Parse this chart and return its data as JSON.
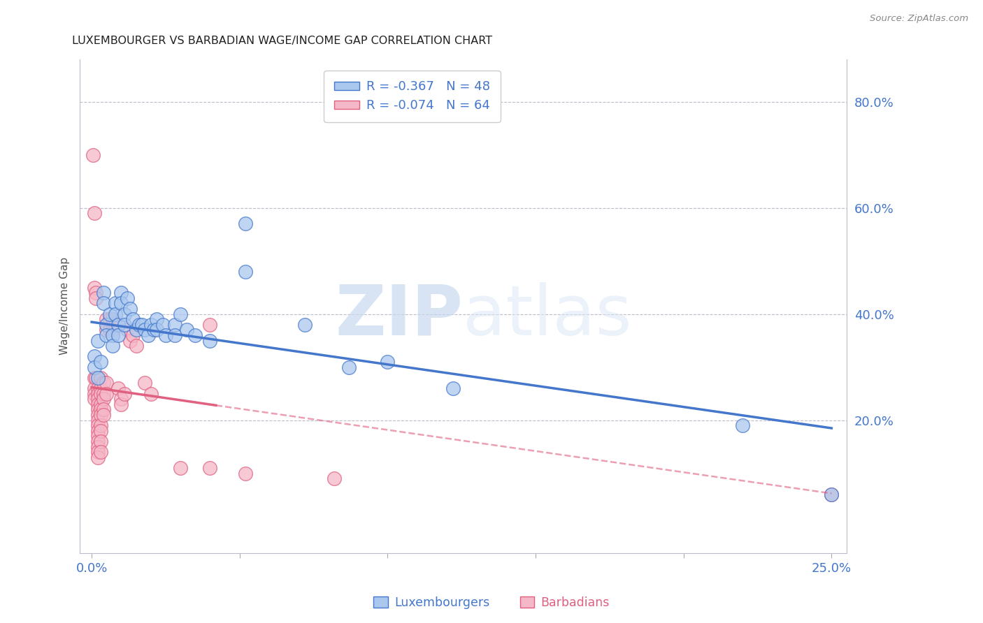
{
  "title": "LUXEMBOURGER VS BARBADIAN WAGE/INCOME GAP CORRELATION CHART",
  "source": "Source: ZipAtlas.com",
  "ylabel": "Wage/Income Gap",
  "right_yticks": [
    "80.0%",
    "60.0%",
    "40.0%",
    "20.0%"
  ],
  "right_ytick_vals": [
    0.8,
    0.6,
    0.4,
    0.2
  ],
  "legend_lux": "Luxembourgers",
  "legend_bar": "Barbadians",
  "lux_R": "R = -0.367",
  "lux_N": "N = 48",
  "bar_R": "R = -0.074",
  "bar_N": "N = 64",
  "lux_color": "#aac8ee",
  "bar_color": "#f5b8c8",
  "lux_line_color": "#4477cc",
  "bar_line_color": "#e06080",
  "watermark_zip": "ZIP",
  "watermark_atlas": "atlas",
  "xlim": [
    -0.004,
    0.255
  ],
  "ylim": [
    -0.05,
    0.88
  ],
  "lux_scatter": [
    [
      0.001,
      0.32
    ],
    [
      0.001,
      0.3
    ],
    [
      0.002,
      0.35
    ],
    [
      0.003,
      0.31
    ],
    [
      0.002,
      0.28
    ],
    [
      0.004,
      0.44
    ],
    [
      0.004,
      0.42
    ],
    [
      0.005,
      0.38
    ],
    [
      0.005,
      0.36
    ],
    [
      0.006,
      0.4
    ],
    [
      0.007,
      0.36
    ],
    [
      0.007,
      0.34
    ],
    [
      0.008,
      0.42
    ],
    [
      0.008,
      0.4
    ],
    [
      0.009,
      0.38
    ],
    [
      0.009,
      0.36
    ],
    [
      0.01,
      0.44
    ],
    [
      0.01,
      0.42
    ],
    [
      0.011,
      0.4
    ],
    [
      0.011,
      0.38
    ],
    [
      0.012,
      0.43
    ],
    [
      0.013,
      0.41
    ],
    [
      0.014,
      0.39
    ],
    [
      0.015,
      0.37
    ],
    [
      0.016,
      0.38
    ],
    [
      0.017,
      0.38
    ],
    [
      0.018,
      0.37
    ],
    [
      0.019,
      0.36
    ],
    [
      0.02,
      0.38
    ],
    [
      0.021,
      0.37
    ],
    [
      0.022,
      0.39
    ],
    [
      0.022,
      0.37
    ],
    [
      0.024,
      0.38
    ],
    [
      0.025,
      0.36
    ],
    [
      0.028,
      0.38
    ],
    [
      0.028,
      0.36
    ],
    [
      0.03,
      0.4
    ],
    [
      0.032,
      0.37
    ],
    [
      0.035,
      0.36
    ],
    [
      0.04,
      0.35
    ],
    [
      0.052,
      0.57
    ],
    [
      0.052,
      0.48
    ],
    [
      0.072,
      0.38
    ],
    [
      0.087,
      0.3
    ],
    [
      0.1,
      0.31
    ],
    [
      0.122,
      0.26
    ],
    [
      0.22,
      0.19
    ],
    [
      0.25,
      0.06
    ]
  ],
  "bar_scatter": [
    [
      0.0005,
      0.7
    ],
    [
      0.001,
      0.59
    ],
    [
      0.0008,
      0.45
    ],
    [
      0.001,
      0.28
    ],
    [
      0.001,
      0.26
    ],
    [
      0.001,
      0.25
    ],
    [
      0.001,
      0.24
    ],
    [
      0.0015,
      0.44
    ],
    [
      0.0015,
      0.43
    ],
    [
      0.0015,
      0.28
    ],
    [
      0.002,
      0.26
    ],
    [
      0.002,
      0.25
    ],
    [
      0.002,
      0.24
    ],
    [
      0.002,
      0.23
    ],
    [
      0.002,
      0.22
    ],
    [
      0.002,
      0.21
    ],
    [
      0.002,
      0.2
    ],
    [
      0.002,
      0.19
    ],
    [
      0.002,
      0.18
    ],
    [
      0.002,
      0.17
    ],
    [
      0.002,
      0.16
    ],
    [
      0.002,
      0.15
    ],
    [
      0.002,
      0.14
    ],
    [
      0.002,
      0.13
    ],
    [
      0.003,
      0.28
    ],
    [
      0.003,
      0.26
    ],
    [
      0.003,
      0.25
    ],
    [
      0.003,
      0.23
    ],
    [
      0.003,
      0.22
    ],
    [
      0.003,
      0.21
    ],
    [
      0.003,
      0.19
    ],
    [
      0.003,
      0.18
    ],
    [
      0.003,
      0.16
    ],
    [
      0.003,
      0.14
    ],
    [
      0.004,
      0.27
    ],
    [
      0.004,
      0.25
    ],
    [
      0.004,
      0.24
    ],
    [
      0.004,
      0.22
    ],
    [
      0.004,
      0.21
    ],
    [
      0.005,
      0.39
    ],
    [
      0.005,
      0.37
    ],
    [
      0.005,
      0.27
    ],
    [
      0.005,
      0.25
    ],
    [
      0.006,
      0.39
    ],
    [
      0.006,
      0.37
    ],
    [
      0.007,
      0.39
    ],
    [
      0.007,
      0.37
    ],
    [
      0.008,
      0.38
    ],
    [
      0.009,
      0.26
    ],
    [
      0.01,
      0.24
    ],
    [
      0.01,
      0.23
    ],
    [
      0.011,
      0.25
    ],
    [
      0.012,
      0.37
    ],
    [
      0.013,
      0.35
    ],
    [
      0.014,
      0.36
    ],
    [
      0.015,
      0.34
    ],
    [
      0.018,
      0.27
    ],
    [
      0.02,
      0.25
    ],
    [
      0.03,
      0.11
    ],
    [
      0.04,
      0.38
    ],
    [
      0.04,
      0.11
    ],
    [
      0.052,
      0.1
    ],
    [
      0.082,
      0.09
    ],
    [
      0.25,
      0.06
    ]
  ],
  "lux_trendline": [
    [
      0.0,
      0.385
    ],
    [
      0.25,
      0.185
    ]
  ],
  "bar_trendline_solid": [
    [
      0.0,
      0.262
    ],
    [
      0.042,
      0.228
    ]
  ],
  "bar_trendline_dash": [
    [
      0.042,
      0.228
    ],
    [
      0.25,
      0.062
    ]
  ]
}
